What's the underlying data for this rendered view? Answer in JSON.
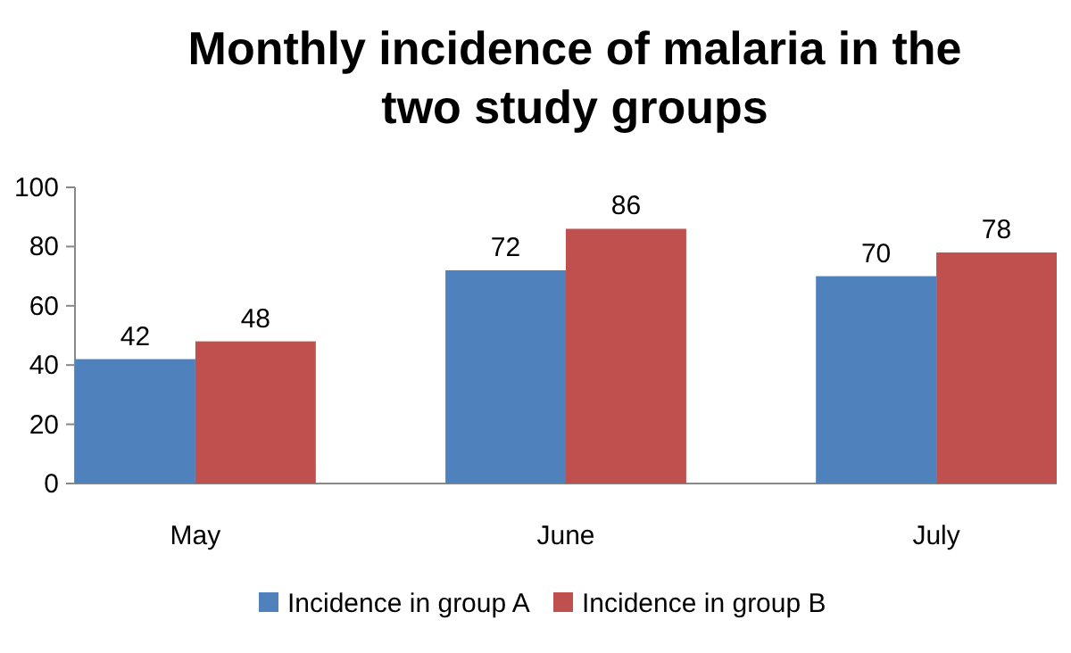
{
  "chart_data": {
    "type": "bar",
    "title": "Monthly incidence of malaria in the two study groups",
    "categories": [
      "May",
      "June",
      "July"
    ],
    "series": [
      {
        "name": "Incidence in group A",
        "color": "#4f81bd",
        "values": [
          42,
          72,
          70
        ]
      },
      {
        "name": "Incidence in group B",
        "color": "#c0504d",
        "values": [
          48,
          86,
          78
        ]
      }
    ],
    "ylim": [
      0,
      100
    ],
    "yticks": [
      0,
      20,
      40,
      60,
      80,
      100
    ],
    "data_labels": true,
    "legend": "bottom"
  }
}
